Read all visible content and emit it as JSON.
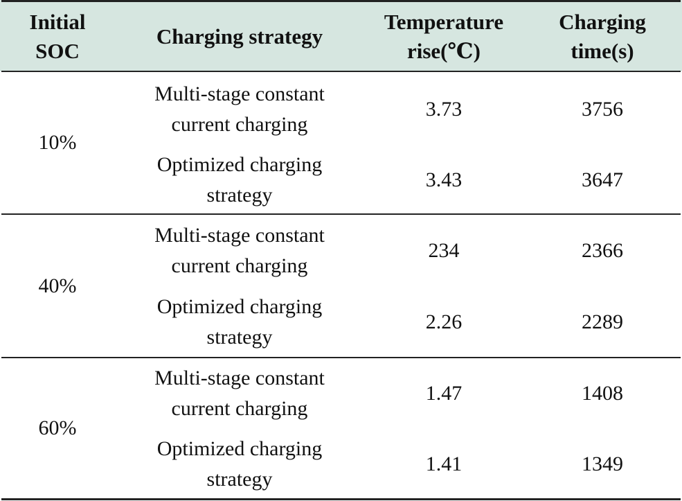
{
  "table": {
    "headers": {
      "soc": "Initial\nSOC",
      "strategy": "Charging strategy",
      "temp": "Temperature\nrise(℃)",
      "time": "Charging\ntime(s)"
    },
    "groups": [
      {
        "soc": "10%",
        "rows": [
          {
            "strategy": "Multi-stage constant\ncurrent charging",
            "temp": "3.73",
            "time": "3756"
          },
          {
            "strategy": "Optimized charging\nstrategy",
            "temp": "3.43",
            "time": "3647"
          }
        ]
      },
      {
        "soc": "40%",
        "rows": [
          {
            "strategy": "Multi-stage constant\ncurrent charging",
            "temp": "234",
            "time": "2366"
          },
          {
            "strategy": "Optimized charging\nstrategy",
            "temp": "2.26",
            "time": "2289"
          }
        ]
      },
      {
        "soc": "60%",
        "rows": [
          {
            "strategy": "Multi-stage constant\ncurrent charging",
            "temp": "1.47",
            "time": "1408"
          },
          {
            "strategy": "Optimized charging\nstrategy",
            "temp": "1.41",
            "time": "1349"
          }
        ]
      }
    ]
  }
}
